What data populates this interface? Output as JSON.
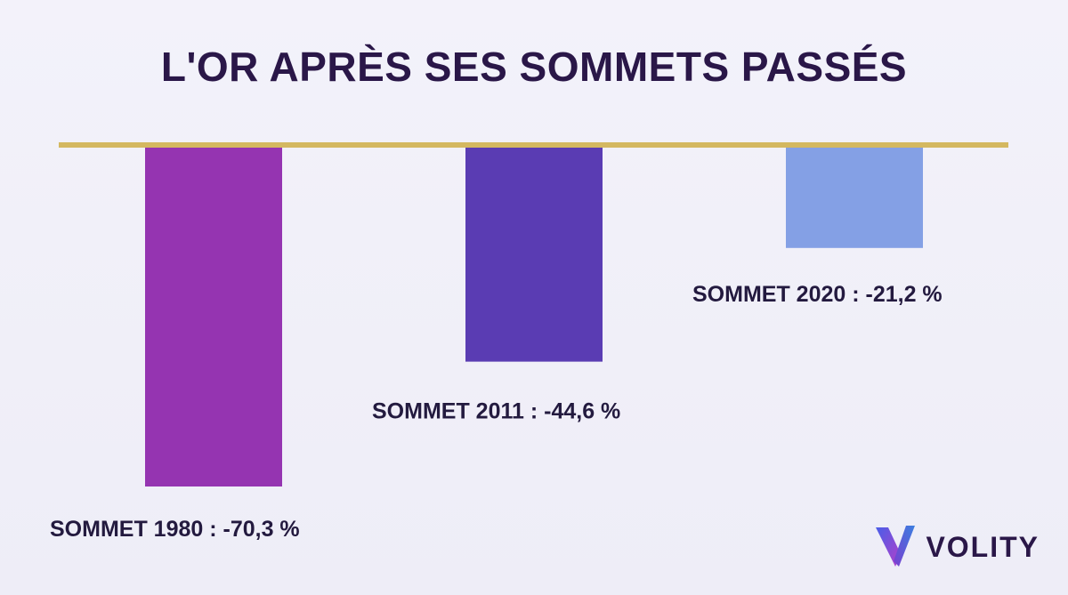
{
  "chart_data": {
    "type": "bar",
    "title": "L'OR APRÈS SES SOMMETS PASSÉS",
    "categories": [
      "SOMMET 1980",
      "SOMMET 2011",
      "SOMMET 2020"
    ],
    "values": [
      -70.3,
      -44.6,
      -21.2
    ],
    "value_labels": [
      "SOMMET 1980 : -70,3 %",
      "SOMMET 2011 : -44,6 %",
      "SOMMET 2020 : -21,2 %"
    ],
    "colors": [
      "#9534b1",
      "#5a3cb3",
      "#84a0e5"
    ],
    "baseline_color": "#d4b860",
    "ylim": [
      -80,
      0
    ],
    "xlabel": "",
    "ylabel": "",
    "grid": false,
    "legend": false
  },
  "brand": {
    "name": "VOLITY",
    "logo_icon": "volity-logo-icon"
  }
}
